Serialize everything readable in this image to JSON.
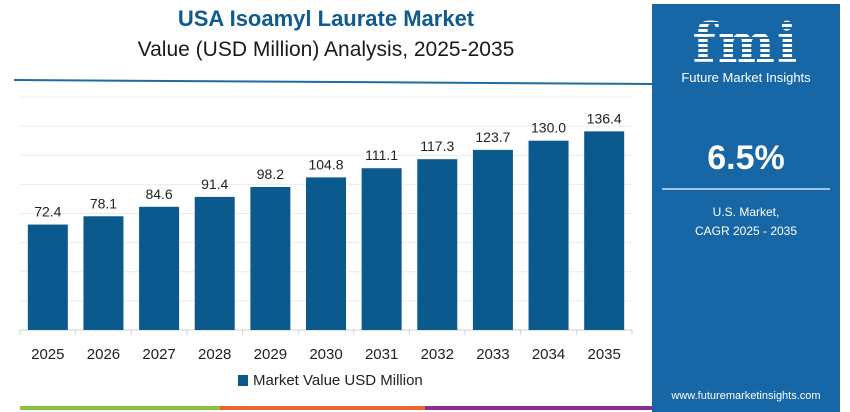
{
  "header": {
    "title": "USA Isoamyl Laurate Market",
    "subtitle": "Value (USD Million) Analysis, 2025-2035"
  },
  "side_panel": {
    "logo_text": "fmi",
    "logo_tagline": "Future Market Insights",
    "cagr_value": "6.5%",
    "cagr_caption_line1": "U.S. Market,",
    "cagr_caption_line2": "CAGR 2025 - 2035",
    "url": "www.futuremarketinsights.com",
    "background_color": "#1767a7"
  },
  "colors": {
    "bar": "#0b5a8e",
    "accent_stripes": [
      "#8cc03f",
      "#e8662c",
      "#8a2f8c"
    ]
  },
  "chart_data": {
    "type": "bar",
    "title": "USA Isoamyl Laurate Market",
    "subtitle": "Value (USD Million) Analysis, 2025-2035",
    "categories": [
      "2025",
      "2026",
      "2027",
      "2028",
      "2029",
      "2030",
      "2031",
      "2032",
      "2033",
      "2034",
      "2035"
    ],
    "series": [
      {
        "name": "Market Value USD Million",
        "values": [
          72.4,
          78.1,
          84.6,
          91.4,
          98.2,
          104.8,
          111.1,
          117.3,
          123.7,
          130.0,
          136.4
        ],
        "labels": [
          "72.4",
          "78.1",
          "84.6",
          "91.4",
          "98.2",
          "104.8",
          "111.1",
          "117.3",
          "123.7",
          "130.0",
          "136.4"
        ]
      }
    ],
    "xlabel": "",
    "ylabel": "",
    "ylim": [
      0,
      160
    ],
    "ygrid_step": 20,
    "grid": true,
    "y_tick_labels_shown": false,
    "legend_position": "bottom"
  }
}
